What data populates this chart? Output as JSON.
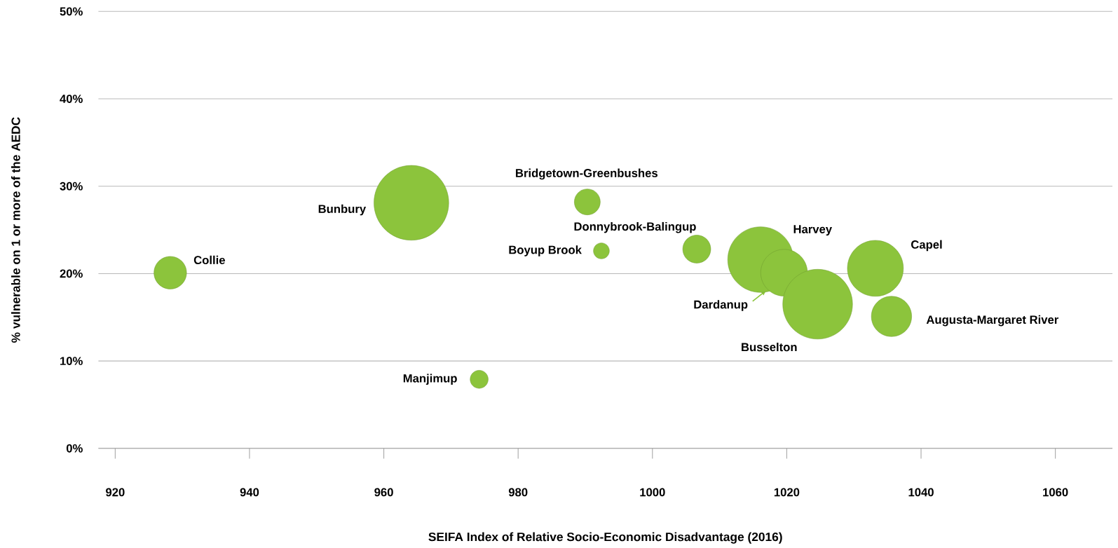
{
  "chart_data": {
    "type": "bubble",
    "xlabel": "SEIFA Index of Relative Socio-Economic Disadvantage (2016)",
    "ylabel": "% vulnerable on 1 or more of the AEDC",
    "xlim": [
      917.5,
      1068.5
    ],
    "ylim": [
      0,
      50
    ],
    "xticks": [
      920,
      940,
      960,
      980,
      1000,
      1020,
      1040,
      1060
    ],
    "yticks": [
      {
        "value": 0,
        "label": "0%"
      },
      {
        "value": 10,
        "label": "10%"
      },
      {
        "value": 20,
        "label": "20%"
      },
      {
        "value": 30,
        "label": "30%"
      },
      {
        "value": 40,
        "label": "40%"
      },
      {
        "value": 50,
        "label": "50%"
      }
    ],
    "grid": "y",
    "series": [
      {
        "name": "Collie",
        "color": "#8cc43c",
        "x": [
          928.2
        ],
        "values": [
          20.1
        ],
        "sizes": [
          0.19
        ]
      },
      {
        "name": "Bunbury",
        "color": "#8cc43c",
        "x": [
          964.1
        ],
        "values": [
          28.1
        ],
        "sizes": [
          1
        ]
      },
      {
        "name": "Bridgetown-Greenbushes",
        "color": "#8cc43c",
        "x": [
          990.3
        ],
        "values": [
          28.2
        ],
        "sizes": [
          0.12
        ]
      },
      {
        "name": "Boyup Brook",
        "color": "#8cc43c",
        "x": [
          992.4
        ],
        "values": [
          22.6
        ],
        "sizes": [
          0.045
        ]
      },
      {
        "name": "Donnybrook-Balingup",
        "color": "#8cc43c",
        "x": [
          1006.6
        ],
        "values": [
          22.8
        ],
        "sizes": [
          0.14
        ]
      },
      {
        "name": "Manjimup",
        "color": "#8cc43c",
        "x": [
          974.2
        ],
        "values": [
          7.9
        ],
        "sizes": [
          0.058
        ]
      },
      {
        "name": "Harvey",
        "color": "#8cc43c",
        "x": [
          1016.1
        ],
        "values": [
          21.6
        ],
        "sizes": [
          0.77
        ]
      },
      {
        "name": "Dardanup",
        "color": "#8cc43c",
        "x": [
          1019.6
        ],
        "values": [
          20.1
        ],
        "sizes": [
          0.39
        ]
      },
      {
        "name": "Busselton",
        "color": "#8cc43c",
        "x": [
          1024.6
        ],
        "values": [
          16.5
        ],
        "sizes": [
          0.87
        ]
      },
      {
        "name": "Capel",
        "color": "#8cc43c",
        "x": [
          1033.2
        ],
        "values": [
          20.6
        ],
        "sizes": [
          0.56
        ]
      },
      {
        "name": "Augusta-Margaret River",
        "color": "#8cc43c",
        "x": [
          1035.6
        ],
        "values": [
          15.1
        ],
        "sizes": [
          0.29
        ]
      }
    ]
  }
}
